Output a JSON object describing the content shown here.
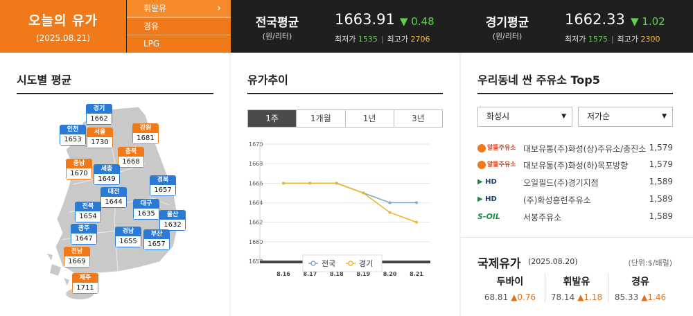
{
  "header": {
    "title": "오늘의 유가",
    "date": "(2025.08.21)",
    "fuel_tabs": [
      "휘발유",
      "경유",
      "LPG"
    ],
    "national": {
      "label": "전국평균",
      "unit": "(원/리터)",
      "price": "1663.91",
      "change": "▼ 0.48",
      "min_label": "최저가",
      "min": "1535",
      "max_label": "최고가",
      "max": "2706"
    },
    "gyeonggi": {
      "label": "경기평균",
      "unit": "(원/리터)",
      "price": "1662.33",
      "change": "▼ 1.02",
      "min_label": "최저가",
      "min": "1575",
      "max_label": "최고가",
      "max": "2300"
    }
  },
  "regional": {
    "title": "시도별 평균",
    "pins": [
      {
        "name": "경기",
        "value": "1662",
        "color": "blue"
      },
      {
        "name": "인천",
        "value": "1653",
        "color": "blue"
      },
      {
        "name": "서울",
        "value": "1730",
        "color": "orange"
      },
      {
        "name": "강원",
        "value": "1681",
        "color": "orange"
      },
      {
        "name": "충북",
        "value": "1668",
        "color": "orange"
      },
      {
        "name": "충남",
        "value": "1670",
        "color": "orange"
      },
      {
        "name": "세종",
        "value": "1649",
        "color": "blue"
      },
      {
        "name": "경북",
        "value": "1657",
        "color": "blue"
      },
      {
        "name": "대전",
        "value": "1644",
        "color": "blue"
      },
      {
        "name": "전북",
        "value": "1654",
        "color": "blue"
      },
      {
        "name": "대구",
        "value": "1635",
        "color": "blue"
      },
      {
        "name": "울산",
        "value": "1632",
        "color": "blue"
      },
      {
        "name": "광주",
        "value": "1647",
        "color": "blue"
      },
      {
        "name": "경남",
        "value": "1655",
        "color": "blue"
      },
      {
        "name": "부산",
        "value": "1657",
        "color": "blue"
      },
      {
        "name": "전남",
        "value": "1669",
        "color": "orange"
      },
      {
        "name": "제주",
        "value": "1711",
        "color": "orange"
      }
    ]
  },
  "trend": {
    "title": "유가추이",
    "tabs": [
      "1주",
      "1개월",
      "1년",
      "3년"
    ]
  },
  "chart_data": {
    "type": "line",
    "x": [
      "8.16",
      "8.17",
      "8.18",
      "8.19",
      "8.20",
      "8.21"
    ],
    "ylim": [
      1658,
      1670
    ],
    "yticks": [
      "1670",
      "1668",
      "1666",
      "1664",
      "1662",
      "1660",
      "1658"
    ],
    "series": [
      {
        "name": "전국",
        "color": "#7ea6cf",
        "values": [
          1666,
          1666,
          1666,
          1665,
          1664,
          1664
        ]
      },
      {
        "name": "경기",
        "color": "#f0b429",
        "values": [
          1666,
          1666,
          1666,
          1665,
          1663,
          1662
        ]
      }
    ]
  },
  "stations": {
    "title": "우리동네 싼 주유소 Top5",
    "region_select": "화성시",
    "sort_select": "저가순",
    "rows": [
      {
        "brand": "알뜰주유소",
        "name": "대보유통(주)화성(상)주유소/충진소",
        "price": "1,579"
      },
      {
        "brand": "알뜰주유소",
        "name": "대보유통(주)화성(하)목포방향",
        "price": "1,579"
      },
      {
        "brand": "HD HYUNDAI OILBANK",
        "name": "오일필드(주)경기지점",
        "price": "1,589"
      },
      {
        "brand": "HD HYUNDAI OILBANK",
        "name": "(주)화성흥련주유소",
        "price": "1,589"
      },
      {
        "brand": "S-OIL",
        "name": "서봉주유소",
        "price": "1,589"
      }
    ]
  },
  "international": {
    "title": "국제유가",
    "date": "(2025.08.20)",
    "unit": "(단위:$/배럴)",
    "items": [
      {
        "name": "두바이",
        "value": "68.81",
        "change": "▲0.76"
      },
      {
        "name": "휘발유",
        "value": "78.14",
        "change": "▲1.18"
      },
      {
        "name": "경유",
        "value": "85.33",
        "change": "▲1.46"
      }
    ]
  }
}
